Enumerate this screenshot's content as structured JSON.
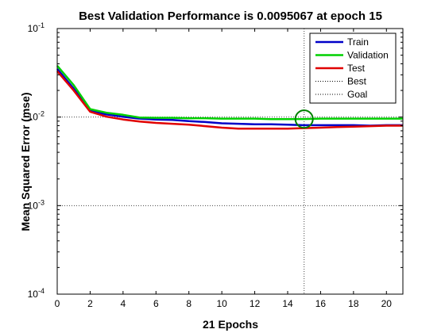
{
  "chart_data": {
    "type": "line",
    "title": "Best Validation Performance is 0.0095067 at epoch 15",
    "xlabel": "21 Epochs",
    "ylabel": "Mean Squared Error  (mse)",
    "xlim": [
      0,
      21
    ],
    "ylim": [
      0.0001,
      0.1
    ],
    "y_scale": "log",
    "x_ticks": [
      0,
      2,
      4,
      6,
      8,
      10,
      12,
      14,
      16,
      18,
      20
    ],
    "x_tick_labels": [
      "0",
      "2",
      "4",
      "6",
      "8",
      "10",
      "12",
      "14",
      "16",
      "18",
      "20"
    ],
    "y_ticks": [
      0.0001,
      0.001,
      0.01,
      0.1
    ],
    "y_tick_base": [
      "10",
      "10",
      "10",
      "10"
    ],
    "y_tick_exp": [
      "-4",
      "-3",
      "-2",
      "-1"
    ],
    "x": [
      0,
      1,
      2,
      3,
      4,
      5,
      6,
      7,
      8,
      9,
      10,
      11,
      12,
      13,
      14,
      15,
      16,
      17,
      18,
      19,
      20,
      21
    ],
    "series": [
      {
        "name": "Train",
        "color": "#0000c8",
        "values": [
          0.035,
          0.021,
          0.0118,
          0.0107,
          0.0101,
          0.0096,
          0.0094,
          0.0093,
          0.009,
          0.0088,
          0.0085,
          0.0084,
          0.0083,
          0.0083,
          0.0082,
          0.0081,
          0.0081,
          0.0081,
          0.0081,
          0.008,
          0.0081,
          0.0081
        ]
      },
      {
        "name": "Validation",
        "color": "#00d000",
        "values": [
          0.038,
          0.023,
          0.0123,
          0.0112,
          0.0106,
          0.0099,
          0.0098,
          0.0098,
          0.0097,
          0.0097,
          0.0096,
          0.0096,
          0.0096,
          0.0095,
          0.0095,
          0.0095067,
          0.0096,
          0.0096,
          0.0096,
          0.0096,
          0.0096,
          0.0096
        ]
      },
      {
        "name": "Test",
        "color": "#e00000",
        "values": [
          0.033,
          0.02,
          0.0115,
          0.0101,
          0.0094,
          0.0089,
          0.0086,
          0.0084,
          0.0082,
          0.0079,
          0.0076,
          0.0074,
          0.0074,
          0.0074,
          0.0074,
          0.0075,
          0.0076,
          0.0077,
          0.0078,
          0.0079,
          0.008,
          0.008
        ]
      }
    ],
    "legend": {
      "position": "top-right",
      "entries": [
        {
          "label": "Train",
          "style": "solid",
          "color": "#0000c8"
        },
        {
          "label": "Validation",
          "style": "solid",
          "color": "#00d000"
        },
        {
          "label": "Test",
          "style": "solid",
          "color": "#e00000"
        },
        {
          "label": "Best",
          "style": "dotted",
          "color": "#000000"
        },
        {
          "label": "Goal",
          "style": "dotted",
          "color": "#000000"
        }
      ]
    },
    "best": {
      "epoch": 15,
      "value": 0.0095067
    },
    "grid_dotted_y": [
      0.001,
      0.01
    ],
    "grid_dotted_x": [
      15
    ]
  }
}
